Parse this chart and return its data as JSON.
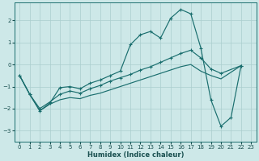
{
  "bg_color": "#cde8e8",
  "grid_color": "#aacece",
  "line_color": "#1a6e6e",
  "ylim": [
    -3.5,
    2.8
  ],
  "xlim": [
    -0.5,
    23.5
  ],
  "yticks": [
    -3,
    -2,
    -1,
    0,
    1,
    2
  ],
  "xticks": [
    0,
    1,
    2,
    3,
    4,
    5,
    6,
    7,
    8,
    9,
    10,
    11,
    12,
    13,
    14,
    15,
    16,
    17,
    18,
    19,
    20,
    21,
    22,
    23
  ],
  "xlabel": "Humidex (Indice chaleur)",
  "line1_x": [
    0,
    1,
    2,
    3,
    4,
    5,
    6,
    7,
    8,
    9,
    10,
    11,
    12,
    13,
    14,
    15,
    16,
    17,
    18,
    19,
    20,
    21,
    22
  ],
  "line1_y": [
    -0.5,
    -1.35,
    -2.1,
    -1.75,
    -1.05,
    -1.0,
    -1.1,
    -0.85,
    -0.7,
    -0.5,
    -0.3,
    0.9,
    1.35,
    1.5,
    1.2,
    2.1,
    2.5,
    2.3,
    0.75,
    -1.6,
    -2.8,
    -2.4,
    -0.05
  ],
  "line2_x": [
    0,
    1,
    2,
    3,
    4,
    5,
    6,
    7,
    8,
    9,
    10,
    11,
    12,
    13,
    14,
    15,
    16,
    17,
    18,
    19,
    20,
    21,
    22
  ],
  "line2_y": [
    -0.5,
    -1.35,
    -2.0,
    -1.7,
    -1.35,
    -1.2,
    -1.3,
    -1.1,
    -0.95,
    -0.75,
    -0.6,
    -0.45,
    -0.25,
    -0.1,
    0.1,
    0.3,
    0.5,
    0.65,
    0.3,
    -0.2,
    -0.4,
    null,
    -0.05
  ],
  "line3_x": [
    0,
    1,
    2,
    3,
    4,
    5,
    6,
    7,
    8,
    9,
    10,
    11,
    12,
    13,
    14,
    15,
    16,
    17,
    18,
    19,
    20,
    22
  ],
  "line3_y": [
    -0.5,
    -1.35,
    -2.1,
    -1.8,
    -1.6,
    -1.5,
    -1.55,
    -1.4,
    -1.3,
    -1.15,
    -1.0,
    -0.85,
    -0.7,
    -0.55,
    -0.4,
    -0.25,
    -0.1,
    0.0,
    -0.3,
    -0.5,
    -0.65,
    -0.05
  ],
  "marker_style": "+"
}
